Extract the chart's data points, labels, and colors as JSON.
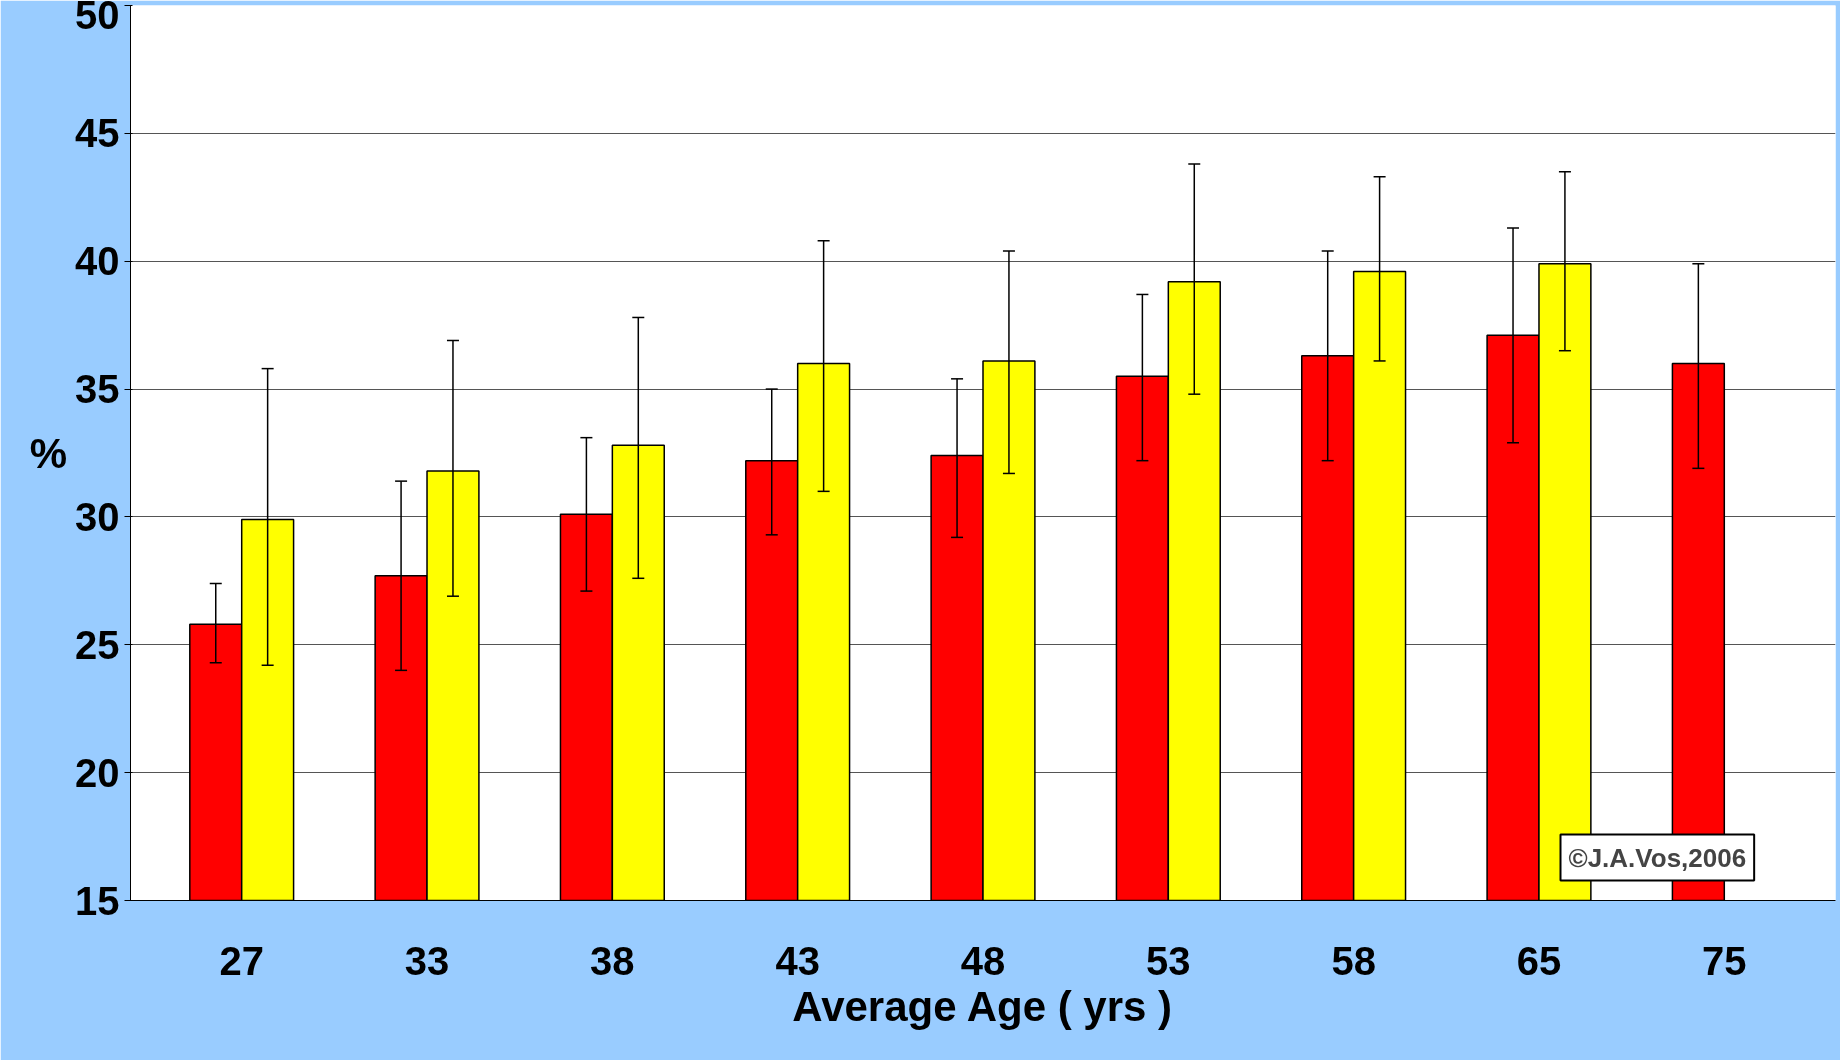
{
  "chart_data": {
    "type": "bar",
    "xlabel": "Average Age ( yrs )",
    "ylabel": "%",
    "categories": [
      "27",
      "33",
      "38",
      "43",
      "48",
      "53",
      "58",
      "65",
      "75"
    ],
    "series": [
      {
        "color": "#ff0000",
        "values": [
          25.8,
          27.7,
          30.1,
          32.2,
          32.4,
          35.5,
          36.3,
          37.1,
          36.0
        ],
        "errors": [
          [
            24.3,
            27.4
          ],
          [
            24.0,
            31.4
          ],
          [
            27.1,
            33.1
          ],
          [
            29.3,
            35.0
          ],
          [
            29.2,
            35.4
          ],
          [
            32.2,
            38.7
          ],
          [
            32.2,
            40.4
          ],
          [
            32.9,
            41.3
          ],
          [
            31.9,
            39.9
          ]
        ]
      },
      {
        "color": "#ffff00",
        "values": [
          29.9,
          31.8,
          32.8,
          36.0,
          36.1,
          39.2,
          39.6,
          39.9,
          null
        ],
        "errors": [
          [
            24.2,
            35.8
          ],
          [
            26.9,
            36.9
          ],
          [
            27.6,
            37.8
          ],
          [
            31.0,
            40.8
          ],
          [
            31.7,
            40.4
          ],
          [
            34.8,
            43.8
          ],
          [
            36.1,
            43.3
          ],
          [
            36.5,
            43.5
          ],
          null
        ]
      }
    ],
    "ylim": [
      15,
      50
    ],
    "yticks": [
      15,
      20,
      25,
      30,
      35,
      40,
      45,
      50
    ],
    "grid": "y",
    "annotations": [
      "©J.A.Vos,2006"
    ]
  }
}
